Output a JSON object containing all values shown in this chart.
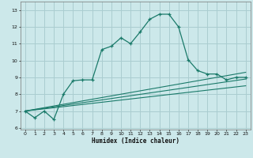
{
  "title": "",
  "xlabel": "Humidex (Indice chaleur)",
  "bg_color": "#cce8ea",
  "grid_color": "#aacdd0",
  "line_color": "#1a7a6a",
  "x_ticks": [
    0,
    1,
    2,
    3,
    4,
    5,
    6,
    7,
    8,
    9,
    10,
    11,
    12,
    13,
    14,
    15,
    16,
    17,
    18,
    19,
    20,
    21,
    22,
    23
  ],
  "y_ticks": [
    6,
    7,
    8,
    9,
    10,
    11,
    12,
    13
  ],
  "ylim": [
    5.9,
    13.5
  ],
  "xlim": [
    -0.5,
    23.5
  ],
  "main_x": [
    0,
    1,
    2,
    3,
    4,
    5,
    6,
    7,
    8,
    9,
    10,
    11,
    12,
    13,
    14,
    15,
    16,
    17,
    18,
    19,
    20,
    21,
    22,
    23
  ],
  "main_y": [
    7.0,
    6.6,
    7.0,
    6.5,
    8.0,
    8.8,
    8.85,
    8.85,
    10.65,
    10.85,
    11.35,
    11.0,
    11.7,
    12.45,
    12.75,
    12.75,
    12.0,
    10.05,
    9.4,
    9.2,
    9.2,
    8.85,
    9.0,
    9.0
  ],
  "line1_x": [
    0,
    23
  ],
  "line1_y": [
    7.0,
    9.3
  ],
  "line2_x": [
    0,
    23
  ],
  "line2_y": [
    7.0,
    8.9
  ],
  "line3_x": [
    0,
    23
  ],
  "line3_y": [
    7.0,
    8.5
  ]
}
